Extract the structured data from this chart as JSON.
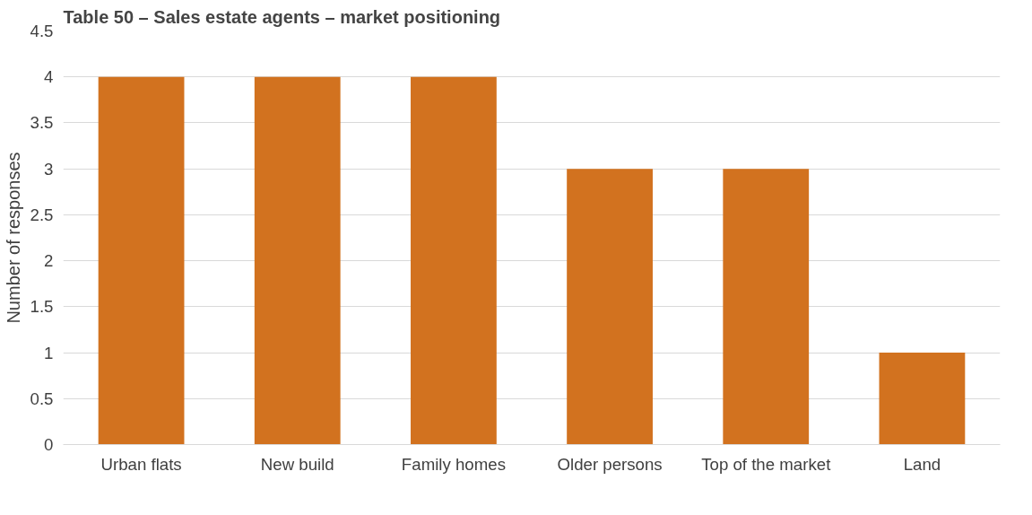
{
  "chart_data": {
    "type": "bar",
    "title": "Table 50 – Sales estate agents – market positioning",
    "ylabel": "Number of responses",
    "categories": [
      "Urban flats",
      "New build",
      "Family homes",
      "Older persons",
      "Top of the market",
      "Land"
    ],
    "values": [
      4,
      4,
      4,
      3,
      3,
      1
    ],
    "color": "#d2721f",
    "ylim": [
      0,
      4.5
    ],
    "yticks": [
      0,
      0.5,
      1,
      1.5,
      2,
      2.5,
      3,
      3.5,
      4,
      4.5
    ],
    "grid": "y"
  }
}
